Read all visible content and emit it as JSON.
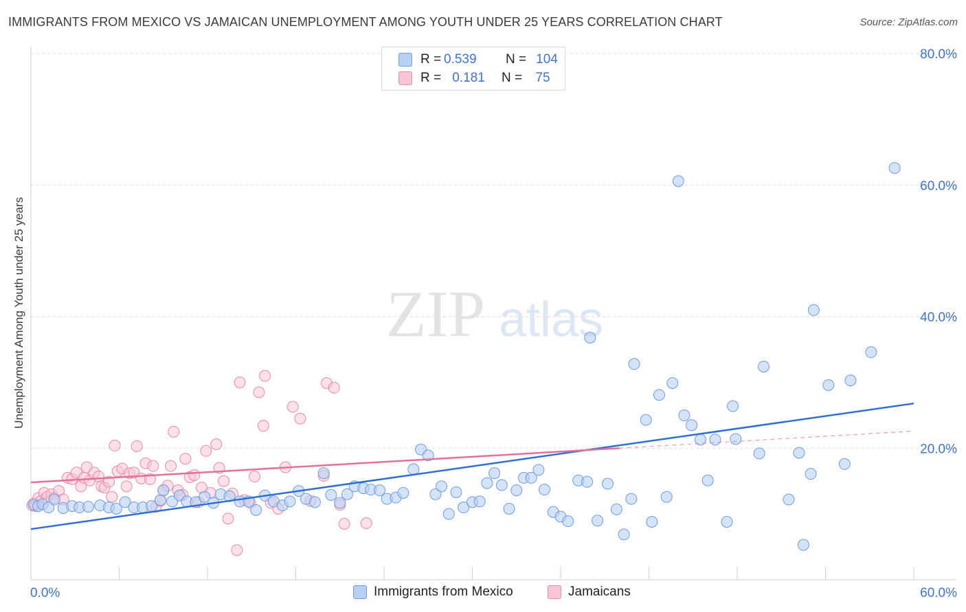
{
  "title": "IMMIGRANTS FROM MEXICO VS JAMAICAN UNEMPLOYMENT AMONG YOUTH UNDER 25 YEARS CORRELATION CHART",
  "source": "Source: ZipAtlas.com",
  "watermark": {
    "zip": "ZIP",
    "atlas": "atlas"
  },
  "legend_stats": {
    "r_label": "R =",
    "n_label": "N =",
    "rows": [
      {
        "series": "Immigrants from Mexico",
        "r": "0.539",
        "n": "104",
        "color": "#4a7fd6"
      },
      {
        "series": "Jamaicans",
        "r": "0.181",
        "n": "75",
        "color": "#e8799e"
      }
    ]
  },
  "legend_bottom": [
    "Immigrants from Mexico",
    "Jamaicans"
  ],
  "colors": {
    "blue_fill": "#b8d0f3",
    "blue_stroke": "#6f9be0",
    "blue_line": "#2f6fd3",
    "pink_fill": "#f7c6d5",
    "pink_stroke": "#e98aa9",
    "pink_line": "#e3709a",
    "tick_label": "#3d73cc",
    "grid": "#dcdcdc"
  },
  "chart_data": {
    "type": "scatter",
    "title": "IMMIGRANTS FROM MEXICO VS JAMAICAN UNEMPLOYMENT AMONG YOUTH UNDER 25 YEARS CORRELATION CHART",
    "xlabel": "",
    "ylabel": "Unemployment Among Youth under 25 years",
    "xlim": [
      0,
      60
    ],
    "ylim": [
      0,
      80
    ],
    "x_tick_labels": [
      "0.0%",
      "60.0%"
    ],
    "y_ticks": [
      20,
      40,
      60,
      80
    ],
    "y_tick_labels": [
      "20.0%",
      "40.0%",
      "60.0%",
      "80.0%"
    ],
    "grid": "horizontal dashed",
    "legend_position": "top-center and bottom",
    "series": [
      {
        "name": "Immigrants from Mexico",
        "regression": {
          "x0": 0,
          "y0": 7.7,
          "x1": 60,
          "y1": 26.8
        },
        "points": [
          [
            0.2,
            11.4
          ],
          [
            0.5,
            11.2
          ],
          [
            0.8,
            11.5
          ],
          [
            1.2,
            11.0
          ],
          [
            1.6,
            12.2
          ],
          [
            2.2,
            10.9
          ],
          [
            2.8,
            11.2
          ],
          [
            3.3,
            11.0
          ],
          [
            3.9,
            11.1
          ],
          [
            4.7,
            11.3
          ],
          [
            5.3,
            11.0
          ],
          [
            5.8,
            10.8
          ],
          [
            6.4,
            11.8
          ],
          [
            7.0,
            11.0
          ],
          [
            7.6,
            11.0
          ],
          [
            8.2,
            11.2
          ],
          [
            8.8,
            12.1
          ],
          [
            9.0,
            13.6
          ],
          [
            9.6,
            11.9
          ],
          [
            10.1,
            12.8
          ],
          [
            10.6,
            11.9
          ],
          [
            11.2,
            11.8
          ],
          [
            11.8,
            12.6
          ],
          [
            12.4,
            11.7
          ],
          [
            12.9,
            13.0
          ],
          [
            13.5,
            12.7
          ],
          [
            14.2,
            11.9
          ],
          [
            14.8,
            11.9
          ],
          [
            15.3,
            10.6
          ],
          [
            15.9,
            12.8
          ],
          [
            16.5,
            11.9
          ],
          [
            17.1,
            11.3
          ],
          [
            17.6,
            11.9
          ],
          [
            18.2,
            13.5
          ],
          [
            18.7,
            12.3
          ],
          [
            19.3,
            11.8
          ],
          [
            19.9,
            16.2
          ],
          [
            20.4,
            12.9
          ],
          [
            21.0,
            11.7
          ],
          [
            21.5,
            13.0
          ],
          [
            22.0,
            14.2
          ],
          [
            22.6,
            13.9
          ],
          [
            23.1,
            13.7
          ],
          [
            23.7,
            13.6
          ],
          [
            24.2,
            12.3
          ],
          [
            24.8,
            12.5
          ],
          [
            25.3,
            13.2
          ],
          [
            26.0,
            16.8
          ],
          [
            26.5,
            19.8
          ],
          [
            27.0,
            18.9
          ],
          [
            27.5,
            13.0
          ],
          [
            27.9,
            14.2
          ],
          [
            28.4,
            10.0
          ],
          [
            28.9,
            13.3
          ],
          [
            29.4,
            11.0
          ],
          [
            30.0,
            11.8
          ],
          [
            30.5,
            11.9
          ],
          [
            31.0,
            14.7
          ],
          [
            31.5,
            16.2
          ],
          [
            32.0,
            14.4
          ],
          [
            32.5,
            10.8
          ],
          [
            33.0,
            13.6
          ],
          [
            33.5,
            15.5
          ],
          [
            34.0,
            15.5
          ],
          [
            34.5,
            16.7
          ],
          [
            34.9,
            13.7
          ],
          [
            35.5,
            10.3
          ],
          [
            36.0,
            9.6
          ],
          [
            36.5,
            8.9
          ],
          [
            37.2,
            15.1
          ],
          [
            37.8,
            14.9
          ],
          [
            38.0,
            36.8
          ],
          [
            38.5,
            9.0
          ],
          [
            39.2,
            14.6
          ],
          [
            39.8,
            10.7
          ],
          [
            40.3,
            6.9
          ],
          [
            40.8,
            12.3
          ],
          [
            41.0,
            32.8
          ],
          [
            41.8,
            24.3
          ],
          [
            42.2,
            8.8
          ],
          [
            42.7,
            28.1
          ],
          [
            43.2,
            12.6
          ],
          [
            43.6,
            29.9
          ],
          [
            44.0,
            60.6
          ],
          [
            44.4,
            25.0
          ],
          [
            44.9,
            23.5
          ],
          [
            45.5,
            21.3
          ],
          [
            46.0,
            15.1
          ],
          [
            46.5,
            21.3
          ],
          [
            47.3,
            8.8
          ],
          [
            47.7,
            26.4
          ],
          [
            47.9,
            21.4
          ],
          [
            49.5,
            19.2
          ],
          [
            49.8,
            32.4
          ],
          [
            51.5,
            12.2
          ],
          [
            52.2,
            19.3
          ],
          [
            52.5,
            5.3
          ],
          [
            53.0,
            16.1
          ],
          [
            53.2,
            41.0
          ],
          [
            54.2,
            29.6
          ],
          [
            55.3,
            17.6
          ],
          [
            55.7,
            30.3
          ],
          [
            57.1,
            34.6
          ],
          [
            58.7,
            62.6
          ]
        ]
      },
      {
        "name": "Jamaicans",
        "regression": {
          "x0": 0,
          "y0": 14.8,
          "x1": 40,
          "y1": 20.0,
          "dashed_to": {
            "x": 60,
            "y": 22.6
          }
        },
        "points": [
          [
            0.1,
            11.3
          ],
          [
            0.2,
            11.6
          ],
          [
            0.3,
            11.2
          ],
          [
            0.5,
            12.4
          ],
          [
            0.7,
            12.0
          ],
          [
            0.9,
            13.2
          ],
          [
            1.1,
            12.6
          ],
          [
            1.4,
            13.0
          ],
          [
            1.6,
            12.4
          ],
          [
            1.9,
            13.5
          ],
          [
            2.2,
            12.2
          ],
          [
            2.5,
            15.5
          ],
          [
            2.8,
            15.3
          ],
          [
            3.1,
            16.3
          ],
          [
            3.4,
            14.2
          ],
          [
            3.6,
            15.5
          ],
          [
            3.8,
            17.1
          ],
          [
            4.0,
            15.1
          ],
          [
            4.3,
            16.3
          ],
          [
            4.6,
            15.7
          ],
          [
            4.8,
            14.2
          ],
          [
            5.0,
            14.0
          ],
          [
            5.3,
            14.9
          ],
          [
            5.5,
            12.6
          ],
          [
            5.7,
            20.4
          ],
          [
            5.9,
            16.5
          ],
          [
            6.2,
            16.9
          ],
          [
            6.5,
            14.2
          ],
          [
            6.7,
            16.2
          ],
          [
            7.0,
            16.3
          ],
          [
            7.2,
            20.3
          ],
          [
            7.5,
            15.4
          ],
          [
            7.8,
            17.7
          ],
          [
            8.1,
            15.3
          ],
          [
            8.3,
            17.3
          ],
          [
            8.5,
            11.1
          ],
          [
            8.8,
            12.0
          ],
          [
            9.0,
            13.6
          ],
          [
            9.3,
            14.3
          ],
          [
            9.5,
            17.3
          ],
          [
            9.7,
            22.5
          ],
          [
            10.0,
            13.6
          ],
          [
            10.3,
            12.9
          ],
          [
            10.5,
            18.4
          ],
          [
            10.8,
            15.6
          ],
          [
            11.1,
            15.9
          ],
          [
            11.4,
            11.8
          ],
          [
            11.6,
            14.0
          ],
          [
            11.9,
            19.6
          ],
          [
            12.2,
            13.2
          ],
          [
            12.6,
            20.6
          ],
          [
            12.8,
            17.0
          ],
          [
            13.1,
            15.0
          ],
          [
            13.4,
            9.3
          ],
          [
            13.7,
            13.1
          ],
          [
            14.0,
            4.5
          ],
          [
            14.2,
            30.0
          ],
          [
            14.5,
            12.1
          ],
          [
            14.9,
            11.7
          ],
          [
            15.2,
            15.7
          ],
          [
            15.5,
            28.5
          ],
          [
            15.8,
            23.4
          ],
          [
            15.9,
            31.0
          ],
          [
            16.3,
            11.7
          ],
          [
            16.8,
            10.8
          ],
          [
            17.3,
            17.1
          ],
          [
            17.8,
            26.3
          ],
          [
            18.3,
            24.5
          ],
          [
            19.0,
            12.0
          ],
          [
            19.9,
            15.8
          ],
          [
            20.1,
            29.9
          ],
          [
            20.6,
            29.2
          ],
          [
            21.0,
            11.4
          ],
          [
            21.3,
            8.5
          ],
          [
            22.8,
            8.6
          ]
        ]
      }
    ]
  }
}
